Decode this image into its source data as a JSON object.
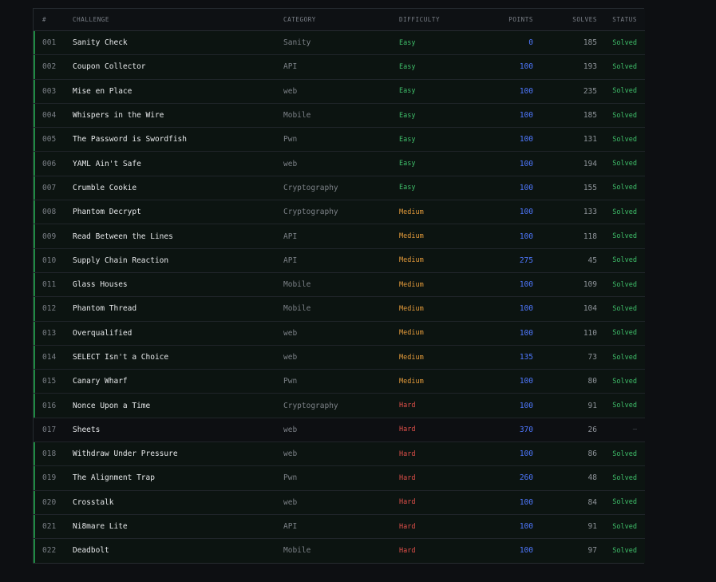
{
  "table": {
    "headers": {
      "num": "#",
      "challenge": "CHALLENGE",
      "category": "CATEGORY",
      "difficulty": "DIFFICULTY",
      "points": "POINTS",
      "solves": "SOLVES",
      "status": "STATUS"
    },
    "colors": {
      "easy": "#3fbf6a",
      "medium": "#e39a3a",
      "hard": "#e2504a",
      "points": "#4f78ff",
      "solved_accent": "#1f8a43"
    },
    "rows": [
      {
        "num": "001",
        "name": "Sanity Check",
        "category": "Sanity",
        "difficulty": "Easy",
        "points": "0",
        "solves": "185",
        "status": "Solved",
        "solved": true
      },
      {
        "num": "002",
        "name": "Coupon Collector",
        "category": "API",
        "difficulty": "Easy",
        "points": "100",
        "solves": "193",
        "status": "Solved",
        "solved": true
      },
      {
        "num": "003",
        "name": "Mise en Place",
        "category": "web",
        "difficulty": "Easy",
        "points": "100",
        "solves": "235",
        "status": "Solved",
        "solved": true
      },
      {
        "num": "004",
        "name": "Whispers in the Wire",
        "category": "Mobile",
        "difficulty": "Easy",
        "points": "100",
        "solves": "185",
        "status": "Solved",
        "solved": true
      },
      {
        "num": "005",
        "name": "The Password is Swordfish",
        "category": "Pwn",
        "difficulty": "Easy",
        "points": "100",
        "solves": "131",
        "status": "Solved",
        "solved": true
      },
      {
        "num": "006",
        "name": "YAML Ain't Safe",
        "category": "web",
        "difficulty": "Easy",
        "points": "100",
        "solves": "194",
        "status": "Solved",
        "solved": true
      },
      {
        "num": "007",
        "name": "Crumble Cookie",
        "category": "Cryptography",
        "difficulty": "Easy",
        "points": "100",
        "solves": "155",
        "status": "Solved",
        "solved": true
      },
      {
        "num": "008",
        "name": "Phantom Decrypt",
        "category": "Cryptography",
        "difficulty": "Medium",
        "points": "100",
        "solves": "133",
        "status": "Solved",
        "solved": true
      },
      {
        "num": "009",
        "name": "Read Between the Lines",
        "category": "API",
        "difficulty": "Medium",
        "points": "100",
        "solves": "118",
        "status": "Solved",
        "solved": true
      },
      {
        "num": "010",
        "name": "Supply Chain Reaction",
        "category": "API",
        "difficulty": "Medium",
        "points": "275",
        "solves": "45",
        "status": "Solved",
        "solved": true
      },
      {
        "num": "011",
        "name": "Glass Houses",
        "category": "Mobile",
        "difficulty": "Medium",
        "points": "100",
        "solves": "109",
        "status": "Solved",
        "solved": true
      },
      {
        "num": "012",
        "name": "Phantom Thread",
        "category": "Mobile",
        "difficulty": "Medium",
        "points": "100",
        "solves": "104",
        "status": "Solved",
        "solved": true
      },
      {
        "num": "013",
        "name": "Overqualified",
        "category": "web",
        "difficulty": "Medium",
        "points": "100",
        "solves": "110",
        "status": "Solved",
        "solved": true
      },
      {
        "num": "014",
        "name": "SELECT Isn't a Choice",
        "category": "web",
        "difficulty": "Medium",
        "points": "135",
        "solves": "73",
        "status": "Solved",
        "solved": true
      },
      {
        "num": "015",
        "name": "Canary Wharf",
        "category": "Pwn",
        "difficulty": "Medium",
        "points": "100",
        "solves": "80",
        "status": "Solved",
        "solved": true
      },
      {
        "num": "016",
        "name": "Nonce Upon a Time",
        "category": "Cryptography",
        "difficulty": "Hard",
        "points": "100",
        "solves": "91",
        "status": "Solved",
        "solved": true
      },
      {
        "num": "017",
        "name": "Sheets",
        "category": "web",
        "difficulty": "Hard",
        "points": "370",
        "solves": "26",
        "status": "—",
        "solved": false
      },
      {
        "num": "018",
        "name": "Withdraw Under Pressure",
        "category": "web",
        "difficulty": "Hard",
        "points": "100",
        "solves": "86",
        "status": "Solved",
        "solved": true
      },
      {
        "num": "019",
        "name": "The Alignment Trap",
        "category": "Pwn",
        "difficulty": "Hard",
        "points": "260",
        "solves": "48",
        "status": "Solved",
        "solved": true
      },
      {
        "num": "020",
        "name": "Crosstalk",
        "category": "web",
        "difficulty": "Hard",
        "points": "100",
        "solves": "84",
        "status": "Solved",
        "solved": true
      },
      {
        "num": "021",
        "name": "Ni8mare Lite",
        "category": "API",
        "difficulty": "Hard",
        "points": "100",
        "solves": "91",
        "status": "Solved",
        "solved": true
      },
      {
        "num": "022",
        "name": "Deadbolt",
        "category": "Mobile",
        "difficulty": "Hard",
        "points": "100",
        "solves": "97",
        "status": "Solved",
        "solved": true
      }
    ]
  }
}
